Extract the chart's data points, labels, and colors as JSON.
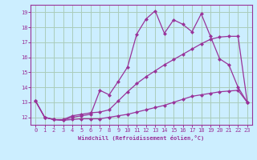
{
  "xlabel": "Windchill (Refroidissement éolien,°C)",
  "bg_color": "#cceeff",
  "grid_color": "#aaccbb",
  "line_color": "#993399",
  "xlim": [
    -0.5,
    23.5
  ],
  "ylim": [
    11.5,
    19.5
  ],
  "yticks": [
    12,
    13,
    14,
    15,
    16,
    17,
    18,
    19
  ],
  "xticks": [
    0,
    1,
    2,
    3,
    4,
    5,
    6,
    7,
    8,
    9,
    10,
    11,
    12,
    13,
    14,
    15,
    16,
    17,
    18,
    19,
    20,
    21,
    22,
    23
  ],
  "line1_x": [
    0,
    1,
    2,
    3,
    4,
    5,
    6,
    7,
    8,
    9,
    10,
    11,
    12,
    13,
    14,
    15,
    16,
    17,
    18,
    19,
    20,
    21,
    22,
    23
  ],
  "line1_y": [
    13.1,
    12.0,
    11.85,
    11.8,
    11.85,
    11.9,
    11.9,
    11.9,
    12.0,
    12.1,
    12.2,
    12.35,
    12.5,
    12.65,
    12.8,
    13.0,
    13.2,
    13.4,
    13.5,
    13.6,
    13.7,
    13.75,
    13.8,
    13.0
  ],
  "line2_x": [
    0,
    1,
    2,
    3,
    4,
    5,
    6,
    7,
    8,
    9,
    10,
    11,
    12,
    13,
    14,
    15,
    16,
    17,
    18,
    19,
    20,
    21,
    22,
    23
  ],
  "line2_y": [
    13.1,
    12.0,
    11.85,
    11.8,
    12.0,
    12.1,
    12.2,
    13.8,
    13.5,
    14.4,
    15.35,
    17.55,
    18.55,
    19.1,
    17.6,
    18.5,
    18.2,
    17.7,
    18.9,
    17.4,
    15.9,
    15.5,
    14.0,
    13.0
  ],
  "line3_x": [
    0,
    1,
    2,
    3,
    4,
    5,
    6,
    7,
    8,
    9,
    10,
    11,
    12,
    13,
    14,
    15,
    16,
    17,
    18,
    19,
    20,
    21,
    22,
    23
  ],
  "line3_y": [
    13.1,
    12.0,
    11.85,
    11.85,
    12.1,
    12.2,
    12.3,
    12.35,
    12.5,
    13.1,
    13.7,
    14.25,
    14.7,
    15.1,
    15.5,
    15.85,
    16.2,
    16.55,
    16.9,
    17.2,
    17.35,
    17.4,
    17.4,
    13.0
  ]
}
